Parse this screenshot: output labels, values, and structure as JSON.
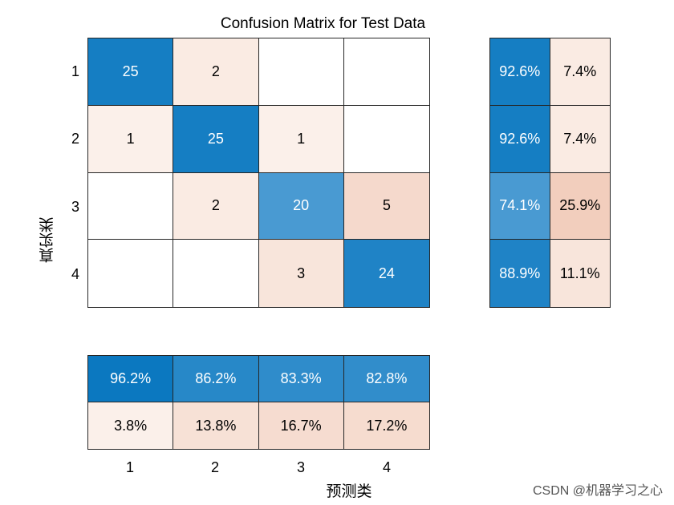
{
  "chart_data": {
    "type": "heatmap",
    "title": "Confusion Matrix for Test Data",
    "xlabel": "预测类",
    "ylabel": "真实类",
    "row_labels": [
      "1",
      "2",
      "3",
      "4"
    ],
    "col_labels": [
      "1",
      "2",
      "3",
      "4"
    ],
    "matrix": [
      [
        25,
        2,
        0,
        0
      ],
      [
        1,
        25,
        1,
        0
      ],
      [
        0,
        2,
        20,
        5
      ],
      [
        0,
        0,
        3,
        24
      ]
    ],
    "matrix_display": [
      [
        "25",
        "2",
        "",
        ""
      ],
      [
        "1",
        "25",
        "1",
        ""
      ],
      [
        "",
        "2",
        "20",
        "5"
      ],
      [
        "",
        "",
        "3",
        "24"
      ]
    ],
    "row_summary": {
      "correct": [
        "92.6%",
        "92.6%",
        "74.1%",
        "88.9%"
      ],
      "incorrect": [
        "7.4%",
        "7.4%",
        "25.9%",
        "11.1%"
      ]
    },
    "column_summary": {
      "correct": [
        "96.2%",
        "86.2%",
        "83.3%",
        "82.8%"
      ],
      "incorrect": [
        "3.8%",
        "13.8%",
        "16.7%",
        "17.2%"
      ]
    },
    "colors": {
      "diag_high": "#0072bd",
      "diag_mid": "#318ccb",
      "offdiag_light": "#fbeee8",
      "offdiag_mid": "#f5d6c8",
      "empty": "#ffffff"
    }
  },
  "watermark": "CSDN @机器学习之心"
}
